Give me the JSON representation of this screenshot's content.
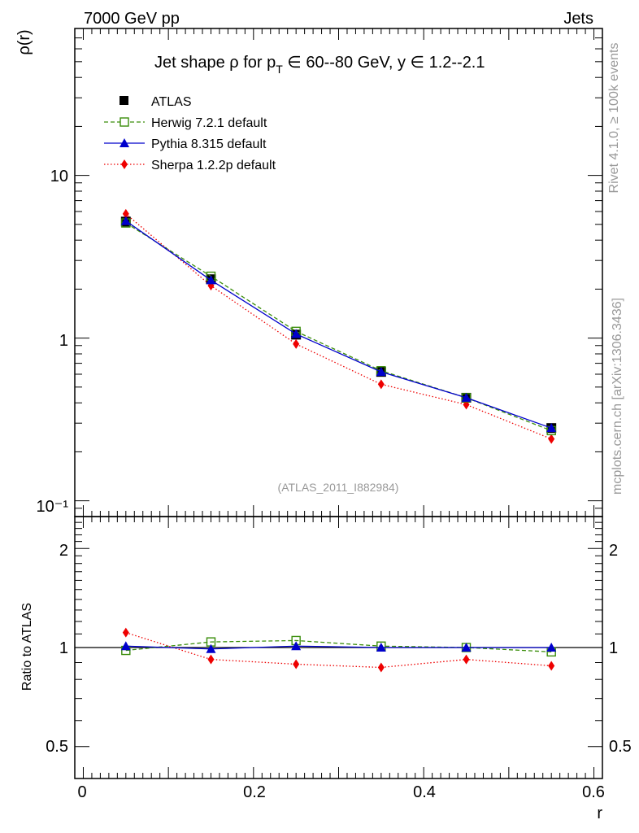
{
  "header": {
    "left": "7000 GeV pp",
    "right": "Jets"
  },
  "side": {
    "rivet": "Rivet 4.1.0, ≥ 100k events",
    "mcplots": "mcplots.cern.ch [arXiv:1306.3436]"
  },
  "watermark": "(ATLAS_2011_I882984)",
  "chart_data": [
    {
      "type": "line",
      "title": "Jet shape ρ for p_T ∈ 60--80 GeV, y ∈ 1.2--2.1",
      "title_parts": {
        "pre": "Jet shape ",
        "rho": "ρ",
        "mid": " for p",
        "sub": "T",
        "post": " ∈ 60--80 GeV, y ∈ 1.2--2.1"
      },
      "ylabel": "ρ(r)",
      "xlabel": "r",
      "yscale": "log",
      "ylim": [
        0.08,
        80
      ],
      "xlim": [
        -0.01,
        0.61
      ],
      "ytick_labels": [
        "10",
        "1",
        "10⁻¹"
      ],
      "x": [
        0.05,
        0.15,
        0.25,
        0.35,
        0.45,
        0.55
      ],
      "series": [
        {
          "name": "ATLAS",
          "values": [
            5.2,
            2.3,
            1.05,
            0.62,
            0.43,
            0.28
          ],
          "color": "#000000",
          "marker": "square",
          "line": "none"
        },
        {
          "name": "Herwig 7.2.1 default",
          "values": [
            5.1,
            2.4,
            1.1,
            0.63,
            0.43,
            0.27
          ],
          "color": "#3a8d0a",
          "marker": "open-square",
          "line": "dashed"
        },
        {
          "name": "Pythia 8.315 default",
          "values": [
            5.25,
            2.27,
            1.06,
            0.62,
            0.43,
            0.28
          ],
          "color": "#0000cc",
          "marker": "triangle",
          "line": "solid"
        },
        {
          "name": "Sherpa 1.2.2p default",
          "values": [
            5.8,
            2.1,
            0.92,
            0.52,
            0.39,
            0.24
          ],
          "color": "#ee0000",
          "marker": "diamond",
          "line": "dotted"
        }
      ]
    },
    {
      "type": "line",
      "ylabel": "Ratio to ATLAS",
      "xlabel": "r",
      "yscale": "log",
      "ylim": [
        0.4,
        2.5
      ],
      "xlim": [
        -0.01,
        0.61
      ],
      "yticks": [
        0.5,
        1,
        2
      ],
      "ytick_labels": [
        "0.5",
        "1",
        "2"
      ],
      "xticks": [
        0,
        0.2,
        0.4,
        0.6
      ],
      "xtick_labels": [
        "0",
        "0.2",
        "0.4",
        "0.6"
      ],
      "x": [
        0.05,
        0.15,
        0.25,
        0.35,
        0.45,
        0.55
      ],
      "series": [
        {
          "name": "Herwig 7.2.1 default",
          "values": [
            0.98,
            1.04,
            1.05,
            1.01,
            1.0,
            0.97
          ],
          "color": "#3a8d0a",
          "marker": "open-square",
          "line": "dashed"
        },
        {
          "name": "Pythia 8.315 default",
          "values": [
            1.01,
            0.99,
            1.01,
            1.0,
            1.0,
            1.0
          ],
          "color": "#0000cc",
          "marker": "triangle",
          "line": "solid"
        },
        {
          "name": "Sherpa 1.2.2p default",
          "values": [
            1.11,
            0.92,
            0.89,
            0.87,
            0.92,
            0.88
          ],
          "color": "#ee0000",
          "marker": "diamond",
          "line": "dotted"
        }
      ]
    }
  ]
}
